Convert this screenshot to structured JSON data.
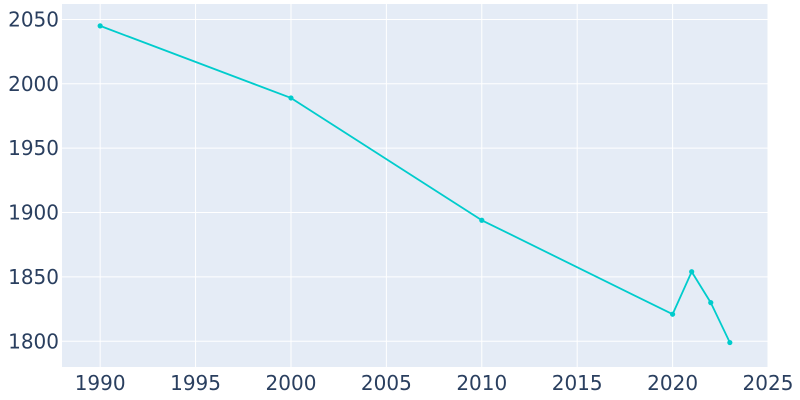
{
  "chart_data": {
    "type": "line",
    "title": "",
    "xlabel": "",
    "ylabel": "",
    "x": [
      1990,
      2000,
      2010,
      2020,
      2021,
      2022,
      2023
    ],
    "series": [
      {
        "values": [
          2045,
          1989,
          1894,
          1821,
          1854,
          1830,
          1799
        ]
      }
    ],
    "xlim": [
      1988,
      2025
    ],
    "ylim": [
      1780,
      2062
    ],
    "xticks": [
      1990,
      1995,
      2000,
      2005,
      2010,
      2015,
      2020,
      2025
    ],
    "yticks": [
      1800,
      1850,
      1900,
      1950,
      2000,
      2050
    ],
    "grid": true,
    "colors": {
      "background": "#e5ecf6",
      "grid": "#ffffff",
      "line": "#00cccc",
      "tick_text": "#2a3f5f"
    }
  }
}
